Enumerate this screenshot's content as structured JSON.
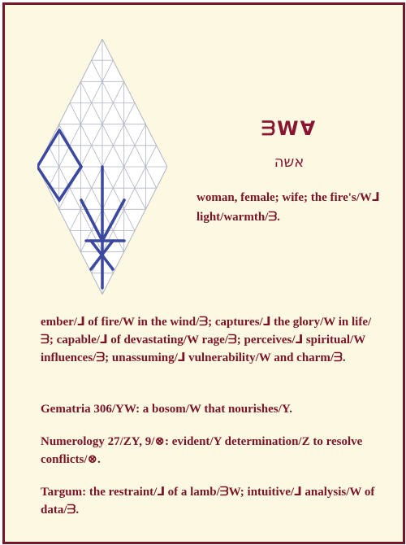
{
  "entry": {
    "paleo_word": "ᗱWⱯ",
    "hebrew_word": "אשה",
    "definition": "woman, female; wife; the fire's/W⅃ light/warmth/ᗱ."
  },
  "paragraphs": [
    {
      "key": "description",
      "text": "ember/⅃ of fire/W in the wind/ᗱ; captures/⅃ the glory/W in life/ᗱ; capable/⅃ of devastating/W rage/ᗱ; perceives/⅃ spiritual/W influences/ᗱ; unassuming/⅃ vulnerability/W and charm/ᗱ."
    },
    {
      "key": "gematria",
      "text": "Gematria 306/YW: a bosom/W that nourishes/Y."
    },
    {
      "key": "numerology",
      "text": "Numerology 27/ZY, 9/⊗: evident/Y determination/Z to resolve conflicts/⊗."
    },
    {
      "key": "targum",
      "text": "Targum: the restraint/⅃ of a lamb/ᗱW; intuitive/⅃ analysis/W of data/ᗱ."
    }
  ],
  "colors": {
    "background": "#fdf8e2",
    "border": "#7a1428",
    "text": "#7a1428",
    "grid": "#b0b4c4",
    "letter_strokes": "#3a48a0"
  }
}
